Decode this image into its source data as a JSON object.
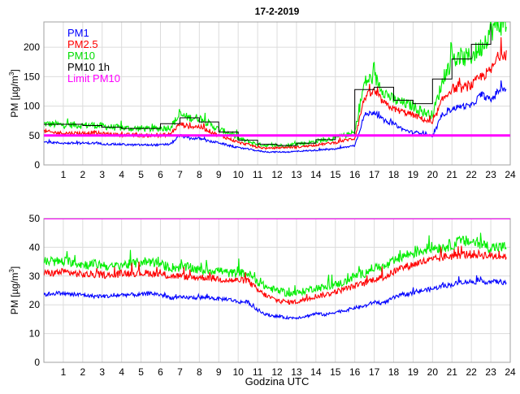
{
  "title": "17-2-2019",
  "xlabel": "Godzina UTC",
  "colors": {
    "PM1": "#0000ff",
    "PM2.5": "#ff0000",
    "PM10": "#00ee00",
    "PM10 1h": "#000000",
    "Limit PM10": "#ff00ff"
  },
  "chart_data": [
    {
      "type": "line",
      "ylabel_main": "PM [µg/m",
      "ylabel_sup": "3",
      "ylabel_end": "]",
      "xlim": [
        0,
        24
      ],
      "ylim": [
        0,
        243
      ],
      "xticks": [
        1,
        2,
        3,
        4,
        5,
        6,
        7,
        8,
        9,
        10,
        11,
        12,
        13,
        14,
        15,
        16,
        17,
        18,
        19,
        20,
        21,
        22,
        23,
        24
      ],
      "yticks": [
        0,
        50,
        100,
        150,
        200
      ],
      "grid": true,
      "legend_placement": "top-left",
      "legend": [
        "PM1",
        "PM2.5",
        "PM10",
        "PM10 1h",
        "Limit PM10"
      ],
      "x": [
        0,
        0.5,
        1,
        1.5,
        2,
        2.5,
        3,
        3.5,
        4,
        4.5,
        5,
        5.5,
        6,
        6.5,
        7,
        7.5,
        8,
        8.5,
        9,
        9.5,
        10,
        10.5,
        11,
        11.5,
        12,
        12.5,
        13,
        13.5,
        14,
        14.5,
        15,
        15.5,
        16,
        16.5,
        17,
        17.5,
        18,
        18.5,
        19,
        19.5,
        20,
        20.5,
        21,
        21.5,
        22,
        22.5,
        23,
        23.5,
        23.8
      ],
      "series": [
        {
          "name": "PM10",
          "values": [
            70,
            69,
            68,
            68,
            67,
            68,
            66,
            64,
            63,
            62,
            62,
            61,
            62,
            64,
            85,
            80,
            80,
            70,
            60,
            55,
            45,
            40,
            35,
            33,
            33,
            33,
            36,
            37,
            40,
            43,
            46,
            50,
            55,
            140,
            150,
            125,
            110,
            105,
            100,
            90,
            85,
            140,
            180,
            180,
            185,
            200,
            230,
            240,
            245
          ]
        },
        {
          "name": "PM2.5",
          "values": [
            57,
            55,
            54,
            54,
            54,
            55,
            53,
            52,
            51,
            51,
            50,
            50,
            50,
            52,
            70,
            65,
            65,
            58,
            50,
            45,
            38,
            35,
            30,
            28,
            29,
            30,
            30,
            32,
            34,
            36,
            38,
            42,
            45,
            115,
            125,
            105,
            95,
            90,
            85,
            78,
            70,
            110,
            130,
            130,
            135,
            150,
            160,
            190,
            190
          ]
        },
        {
          "name": "PM1",
          "values": [
            39,
            38,
            37,
            37,
            37,
            37,
            36,
            35,
            35,
            34,
            34,
            34,
            34,
            35,
            50,
            45,
            45,
            40,
            38,
            33,
            29,
            27,
            24,
            22,
            22,
            22,
            23,
            24,
            25,
            26,
            27,
            30,
            33,
            85,
            90,
            75,
            70,
            60,
            55,
            55,
            47,
            85,
            95,
            100,
            100,
            120,
            110,
            130,
            128
          ]
        }
      ],
      "hourly_pm10": [
        69,
        69,
        67,
        64,
        62,
        62,
        70,
        80,
        73,
        56,
        42,
        35,
        33,
        37,
        43,
        50,
        128,
        132,
        110,
        104,
        146,
        180,
        205,
        240
      ],
      "limit_pm10": 50
    },
    {
      "type": "line",
      "ylabel_main": "PM [µg/m",
      "ylabel_sup": "3",
      "ylabel_end": "]",
      "xlim": [
        0,
        24
      ],
      "ylim": [
        0,
        50
      ],
      "xticks": [
        1,
        2,
        3,
        4,
        5,
        6,
        7,
        8,
        9,
        10,
        11,
        12,
        13,
        14,
        15,
        16,
        17,
        18,
        19,
        20,
        21,
        22,
        23,
        24
      ],
      "yticks": [
        0,
        10,
        20,
        30,
        40,
        50
      ],
      "grid": true,
      "x": [
        0,
        0.5,
        1,
        1.5,
        2,
        2.5,
        3,
        3.5,
        4,
        4.5,
        5,
        5.5,
        6,
        6.5,
        7,
        7.5,
        8,
        8.5,
        9,
        9.5,
        10,
        10.5,
        11,
        11.5,
        12,
        12.5,
        13,
        13.5,
        14,
        14.5,
        15,
        15.5,
        16,
        16.5,
        17,
        17.5,
        18,
        18.5,
        19,
        19.5,
        20,
        20.5,
        21,
        21.5,
        22,
        22.5,
        23,
        23.5,
        23.8
      ],
      "series": [
        {
          "name": "PM10",
          "values": [
            35,
            35,
            35,
            35,
            34,
            34,
            34,
            33,
            34,
            34,
            35,
            35,
            34,
            33,
            33,
            33,
            32,
            32,
            32,
            31,
            31,
            31,
            28,
            26,
            25,
            24,
            24,
            25,
            26,
            26,
            27,
            28,
            30,
            31,
            33,
            33,
            35,
            37,
            38,
            39,
            40,
            40,
            41,
            42,
            42,
            41,
            40,
            40,
            40
          ]
        },
        {
          "name": "PM2.5",
          "values": [
            31,
            31,
            31.5,
            31,
            30.5,
            30.5,
            30.5,
            30,
            31,
            31,
            31,
            31,
            30.5,
            30,
            30,
            29.5,
            29.5,
            29.5,
            29,
            28.5,
            28.5,
            28.5,
            25,
            23,
            21.5,
            21,
            21,
            22,
            23,
            23.5,
            24.5,
            25.5,
            26.5,
            27.5,
            29,
            29.5,
            31.5,
            33,
            34,
            35,
            35.5,
            36.5,
            37,
            37.5,
            37.5,
            37.5,
            37,
            37,
            37
          ]
        },
        {
          "name": "PM1",
          "values": [
            23.5,
            24,
            24,
            23.5,
            23.5,
            23,
            23,
            23,
            23.5,
            23.5,
            23.5,
            24,
            23.5,
            22.5,
            22.5,
            22.5,
            22.5,
            22.5,
            22,
            22,
            21,
            21,
            18,
            16.5,
            16,
            15.5,
            15.5,
            16,
            17,
            16.5,
            17.5,
            18,
            19,
            19.5,
            21,
            20.5,
            22.5,
            23.5,
            24,
            25,
            25.5,
            26.5,
            27,
            28,
            28,
            28,
            28,
            28,
            27.5
          ]
        }
      ],
      "limit_pm10": 50
    }
  ]
}
